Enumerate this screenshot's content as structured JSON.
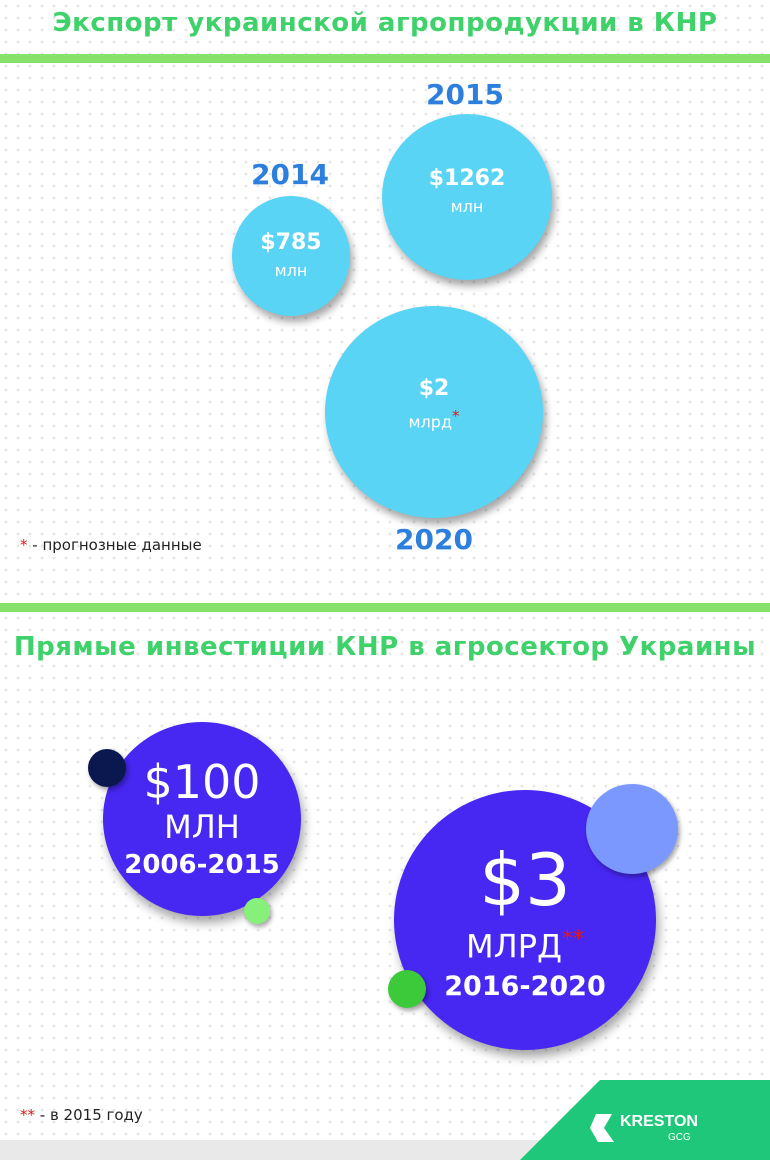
{
  "export_section": {
    "title": "Экспорт украинской агропродукции в КНР",
    "items": [
      {
        "year": "2014",
        "amount": "$785",
        "unit": "млн",
        "star": ""
      },
      {
        "year": "2015",
        "amount": "$1262",
        "unit": "млн",
        "star": ""
      },
      {
        "year": "2020",
        "amount": "$2",
        "unit": "млрд",
        "star": "*"
      }
    ],
    "footnote": {
      "star": "*",
      "text": " - прогнозные данные"
    }
  },
  "invest_section": {
    "title": "Прямые инвестиции КНР в агросектор Украины",
    "items": [
      {
        "amount": "$100",
        "unit": "МЛН",
        "star": "",
        "period": "2006-2015"
      },
      {
        "amount": "$3",
        "unit": "МЛРД",
        "star": "**",
        "period": "2016-2020"
      }
    ],
    "footnote": {
      "star": "**",
      "text": " - в 2015 году"
    }
  },
  "logo": {
    "name": "KRESTON",
    "sub": "GCG"
  },
  "colors": {
    "title_green": "#3fd16a",
    "bar_green": "#86e26b",
    "bubble_blue": "#5ad4f5",
    "year_blue": "#2d7fde",
    "invest_violet": "#4727f2",
    "star_red": "#e0191b",
    "logo_green": "#1fc77a"
  }
}
